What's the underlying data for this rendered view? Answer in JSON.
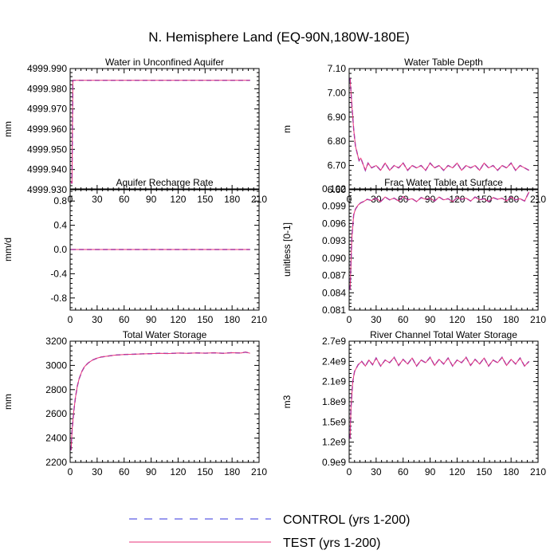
{
  "title": "N. Hemisphere Land (EQ-90N,180W-180E)",
  "legend": {
    "items": [
      {
        "label": "CONTROL (yrs 1-200)",
        "style": "dashed",
        "color": "#3333dd"
      },
      {
        "label": "TEST (yrs 1-200)",
        "style": "solid",
        "color": "#e8337a"
      }
    ]
  },
  "chart_data": [
    {
      "type": "line",
      "title": "Water in Unconfined Aquifer",
      "xlabel": "",
      "ylabel": "mm",
      "xlim": [
        0,
        210
      ],
      "ylim": [
        4999.93,
        4999.99
      ],
      "xticks": [
        0,
        30,
        60,
        90,
        120,
        150,
        180,
        210
      ],
      "yticks": [
        4999.93,
        4999.94,
        4999.95,
        4999.96,
        4999.97,
        4999.98,
        4999.99
      ],
      "ytick_labels": [
        "4999.930",
        "4999.940",
        "4999.950",
        "4999.960",
        "4999.970",
        "4999.980",
        "4999.990"
      ],
      "series": [
        {
          "name": "CONTROL (yrs 1-200)",
          "x": [
            1,
            2,
            3,
            5,
            10,
            50,
            100,
            150,
            200
          ],
          "y": [
            4999.934,
            4999.933,
            4999.9842,
            4999.9842,
            4999.9842,
            4999.9842,
            4999.9842,
            4999.9842,
            4999.9842
          ]
        },
        {
          "name": "TEST (yrs 1-200)",
          "x": [
            1,
            2,
            3,
            5,
            10,
            50,
            100,
            150,
            200
          ],
          "y": [
            4999.934,
            4999.933,
            4999.9842,
            4999.9842,
            4999.9842,
            4999.9842,
            4999.9842,
            4999.9842,
            4999.9842
          ]
        }
      ]
    },
    {
      "type": "line",
      "title": "Water Table Depth",
      "xlabel": "",
      "ylabel": "m",
      "xlim": [
        0,
        210
      ],
      "ylim": [
        6.6,
        7.1
      ],
      "xticks": [
        0,
        30,
        60,
        90,
        120,
        150,
        180,
        210
      ],
      "yticks": [
        6.6,
        6.7,
        6.8,
        6.9,
        7.0,
        7.1
      ],
      "ytick_labels": [
        "6.60",
        "6.70",
        "6.80",
        "6.90",
        "7.00",
        "7.10"
      ],
      "series": [
        {
          "name": "CONTROL (yrs 1-200)",
          "x": [
            1,
            3,
            5,
            7,
            9,
            11,
            13,
            15,
            18,
            21,
            25,
            30,
            35,
            40,
            45,
            50,
            55,
            60,
            65,
            70,
            75,
            80,
            85,
            90,
            95,
            100,
            105,
            110,
            115,
            120,
            125,
            130,
            135,
            140,
            145,
            150,
            155,
            160,
            165,
            170,
            175,
            180,
            185,
            190,
            195,
            200
          ],
          "y": [
            7.06,
            6.95,
            6.85,
            6.78,
            6.75,
            6.72,
            6.73,
            6.71,
            6.68,
            6.71,
            6.69,
            6.7,
            6.68,
            6.71,
            6.68,
            6.7,
            6.69,
            6.71,
            6.68,
            6.7,
            6.69,
            6.7,
            6.68,
            6.71,
            6.69,
            6.7,
            6.68,
            6.7,
            6.69,
            6.71,
            6.68,
            6.7,
            6.69,
            6.7,
            6.68,
            6.71,
            6.69,
            6.7,
            6.68,
            6.7,
            6.69,
            6.71,
            6.68,
            6.7,
            6.69,
            6.68
          ]
        },
        {
          "name": "TEST (yrs 1-200)",
          "x": [
            1,
            3,
            5,
            7,
            9,
            11,
            13,
            15,
            18,
            21,
            25,
            30,
            35,
            40,
            45,
            50,
            55,
            60,
            65,
            70,
            75,
            80,
            85,
            90,
            95,
            100,
            105,
            110,
            115,
            120,
            125,
            130,
            135,
            140,
            145,
            150,
            155,
            160,
            165,
            170,
            175,
            180,
            185,
            190,
            195,
            200
          ],
          "y": [
            7.06,
            6.95,
            6.85,
            6.78,
            6.75,
            6.72,
            6.73,
            6.71,
            6.68,
            6.71,
            6.69,
            6.7,
            6.68,
            6.71,
            6.68,
            6.7,
            6.69,
            6.71,
            6.68,
            6.7,
            6.69,
            6.7,
            6.68,
            6.71,
            6.69,
            6.7,
            6.68,
            6.7,
            6.69,
            6.71,
            6.68,
            6.7,
            6.69,
            6.7,
            6.68,
            6.71,
            6.69,
            6.7,
            6.68,
            6.7,
            6.69,
            6.71,
            6.68,
            6.7,
            6.69,
            6.68
          ]
        }
      ]
    },
    {
      "type": "line",
      "title": "Aquifer Recharge Rate",
      "xlabel": "",
      "ylabel": "mm/d",
      "xlim": [
        0,
        210
      ],
      "ylim": [
        -1.0,
        1.0
      ],
      "xticks": [
        0,
        30,
        60,
        90,
        120,
        150,
        180,
        210
      ],
      "yticks": [
        -0.8,
        -0.4,
        0.0,
        0.4,
        0.8
      ],
      "ytick_labels": [
        "-0.8",
        "-0.4",
        "0.0",
        "0.4",
        "0.8"
      ],
      "series": [
        {
          "name": "CONTROL (yrs 1-200)",
          "x": [
            1,
            200
          ],
          "y": [
            0,
            0
          ]
        },
        {
          "name": "TEST (yrs 1-200)",
          "x": [
            1,
            200
          ],
          "y": [
            0,
            0
          ]
        }
      ]
    },
    {
      "type": "line",
      "title": "Frac Water Table at Surface",
      "xlabel": "",
      "ylabel": "unitless [0-1]",
      "xlim": [
        0,
        210
      ],
      "ylim": [
        0.081,
        0.102
      ],
      "xticks": [
        0,
        30,
        60,
        90,
        120,
        150,
        180,
        210
      ],
      "yticks": [
        0.081,
        0.084,
        0.087,
        0.09,
        0.093,
        0.096,
        0.099,
        0.102
      ],
      "ytick_labels": [
        "0.081",
        "0.084",
        "0.087",
        "0.090",
        "0.093",
        "0.096",
        "0.099",
        "0.102"
      ],
      "series": [
        {
          "name": "CONTROL (yrs 1-200)",
          "x": [
            1,
            3,
            5,
            7,
            10,
            13,
            16,
            20,
            25,
            30,
            35,
            40,
            45,
            50,
            55,
            60,
            65,
            70,
            75,
            80,
            85,
            90,
            95,
            100,
            105,
            110,
            115,
            120,
            125,
            130,
            135,
            140,
            145,
            150,
            155,
            160,
            165,
            170,
            175,
            180,
            185,
            190,
            195,
            200
          ],
          "y": [
            0.0845,
            0.0935,
            0.0975,
            0.0985,
            0.0992,
            0.0996,
            0.0998,
            0.1002,
            0.1,
            0.1004,
            0.0998,
            0.1006,
            0.1001,
            0.1004,
            0.0999,
            0.1007,
            0.1001,
            0.1003,
            0.0998,
            0.1005,
            0.1002,
            0.1004,
            0.0999,
            0.1006,
            0.1001,
            0.1003,
            0.0998,
            0.1005,
            0.1002,
            0.1004,
            0.0999,
            0.1006,
            0.1001,
            0.1003,
            0.0998,
            0.1005,
            0.1002,
            0.1004,
            0.0999,
            0.1006,
            0.1001,
            0.1003,
            0.0999,
            0.1015
          ]
        },
        {
          "name": "TEST (yrs 1-200)",
          "x": [
            1,
            3,
            5,
            7,
            10,
            13,
            16,
            20,
            25,
            30,
            35,
            40,
            45,
            50,
            55,
            60,
            65,
            70,
            75,
            80,
            85,
            90,
            95,
            100,
            105,
            110,
            115,
            120,
            125,
            130,
            135,
            140,
            145,
            150,
            155,
            160,
            165,
            170,
            175,
            180,
            185,
            190,
            195,
            200
          ],
          "y": [
            0.0845,
            0.0935,
            0.0975,
            0.0985,
            0.0992,
            0.0996,
            0.0998,
            0.1002,
            0.1,
            0.1004,
            0.0998,
            0.1006,
            0.1001,
            0.1004,
            0.0999,
            0.1007,
            0.1001,
            0.1003,
            0.0998,
            0.1005,
            0.1002,
            0.1004,
            0.0999,
            0.1006,
            0.1001,
            0.1003,
            0.0998,
            0.1005,
            0.1002,
            0.1004,
            0.0999,
            0.1006,
            0.1001,
            0.1003,
            0.0998,
            0.1005,
            0.1002,
            0.1004,
            0.0999,
            0.1006,
            0.1001,
            0.1003,
            0.0999,
            0.1015
          ]
        }
      ]
    },
    {
      "type": "line",
      "title": "Total Water Storage",
      "xlabel": "",
      "ylabel": "mm",
      "xlim": [
        0,
        210
      ],
      "ylim": [
        2200,
        3200
      ],
      "xticks": [
        0,
        30,
        60,
        90,
        120,
        150,
        180,
        210
      ],
      "yticks": [
        2200,
        2400,
        2600,
        2800,
        3000,
        3200
      ],
      "ytick_labels": [
        "2200",
        "2400",
        "2600",
        "2800",
        "3000",
        "3200"
      ],
      "series": [
        {
          "name": "CONTROL (yrs 1-200)",
          "x": [
            1,
            2,
            4,
            6,
            8,
            10,
            13,
            16,
            20,
            25,
            30,
            35,
            40,
            50,
            60,
            70,
            80,
            90,
            100,
            110,
            120,
            130,
            140,
            150,
            160,
            170,
            180,
            190,
            195,
            200
          ],
          "y": [
            2300,
            2450,
            2620,
            2740,
            2830,
            2890,
            2950,
            2990,
            3020,
            3045,
            3060,
            3070,
            3075,
            3085,
            3090,
            3092,
            3095,
            3097,
            3100,
            3098,
            3102,
            3100,
            3103,
            3101,
            3104,
            3100,
            3105,
            3102,
            3110,
            3100
          ]
        },
        {
          "name": "TEST (yrs 1-200)",
          "x": [
            1,
            2,
            4,
            6,
            8,
            10,
            13,
            16,
            20,
            25,
            30,
            35,
            40,
            50,
            60,
            70,
            80,
            90,
            100,
            110,
            120,
            130,
            140,
            150,
            160,
            170,
            180,
            190,
            195,
            200
          ],
          "y": [
            2300,
            2450,
            2620,
            2740,
            2830,
            2890,
            2950,
            2990,
            3020,
            3045,
            3060,
            3070,
            3075,
            3085,
            3090,
            3092,
            3095,
            3097,
            3100,
            3098,
            3102,
            3100,
            3103,
            3101,
            3104,
            3100,
            3105,
            3102,
            3110,
            3100
          ]
        }
      ]
    },
    {
      "type": "line",
      "title": "River Channel Total Water Storage",
      "xlabel": "",
      "ylabel": "m3",
      "xlim": [
        0,
        210
      ],
      "ylim": [
        900000000,
        2700000000
      ],
      "xticks": [
        0,
        30,
        60,
        90,
        120,
        150,
        180,
        210
      ],
      "yticks": [
        900000000,
        1200000000,
        1500000000,
        1800000000,
        2100000000,
        2400000000,
        2700000000
      ],
      "ytick_labels": [
        "0.9e9",
        "1.2e9",
        "1.5e9",
        "1.8e9",
        "2.1e9",
        "2.4e9",
        "2.7e9"
      ],
      "series": [
        {
          "name": "CONTROL (yrs 1-200)",
          "x": [
            1,
            2,
            4,
            6,
            8,
            10,
            14,
            18,
            22,
            26,
            30,
            35,
            40,
            45,
            50,
            55,
            60,
            65,
            70,
            75,
            80,
            85,
            90,
            95,
            100,
            105,
            110,
            115,
            120,
            125,
            130,
            135,
            140,
            145,
            150,
            155,
            160,
            165,
            170,
            175,
            180,
            185,
            190,
            195,
            200
          ],
          "y": [
            1250000000,
            1700000000,
            2100000000,
            2250000000,
            2300000000,
            2350000000,
            2400000000,
            2330000000,
            2420000000,
            2350000000,
            2450000000,
            2330000000,
            2420000000,
            2380000000,
            2460000000,
            2340000000,
            2430000000,
            2360000000,
            2450000000,
            2330000000,
            2420000000,
            2380000000,
            2460000000,
            2340000000,
            2430000000,
            2360000000,
            2450000000,
            2330000000,
            2420000000,
            2380000000,
            2460000000,
            2340000000,
            2430000000,
            2360000000,
            2450000000,
            2330000000,
            2420000000,
            2380000000,
            2460000000,
            2340000000,
            2430000000,
            2360000000,
            2450000000,
            2330000000,
            2400000000
          ]
        },
        {
          "name": "TEST (yrs 1-200)",
          "x": [
            1,
            2,
            4,
            6,
            8,
            10,
            14,
            18,
            22,
            26,
            30,
            35,
            40,
            45,
            50,
            55,
            60,
            65,
            70,
            75,
            80,
            85,
            90,
            95,
            100,
            105,
            110,
            115,
            120,
            125,
            130,
            135,
            140,
            145,
            150,
            155,
            160,
            165,
            170,
            175,
            180,
            185,
            190,
            195,
            200
          ],
          "y": [
            1250000000,
            1700000000,
            2100000000,
            2250000000,
            2300000000,
            2350000000,
            2400000000,
            2330000000,
            2420000000,
            2350000000,
            2450000000,
            2330000000,
            2420000000,
            2380000000,
            2460000000,
            2340000000,
            2430000000,
            2360000000,
            2450000000,
            2330000000,
            2420000000,
            2380000000,
            2460000000,
            2340000000,
            2430000000,
            2360000000,
            2450000000,
            2330000000,
            2420000000,
            2380000000,
            2460000000,
            2340000000,
            2430000000,
            2360000000,
            2450000000,
            2330000000,
            2420000000,
            2380000000,
            2460000000,
            2340000000,
            2430000000,
            2360000000,
            2450000000,
            2330000000,
            2400000000
          ]
        }
      ]
    }
  ]
}
